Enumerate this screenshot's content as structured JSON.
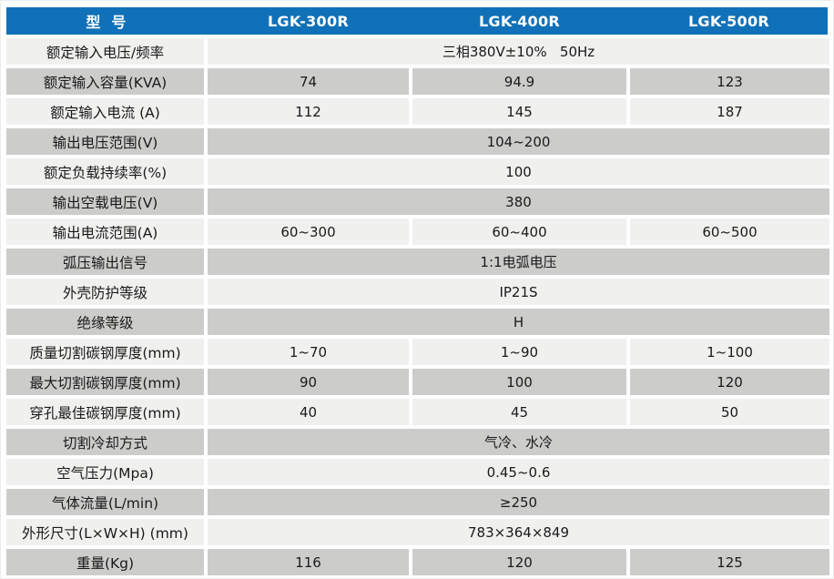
{
  "colors": {
    "header_bg": "#1171b8",
    "header_text": "#ffffff",
    "row_light": "#f0f0ef",
    "row_dark": "#cccccb",
    "text": "#1a1a1a",
    "page_bg": "#ffffff"
  },
  "table": {
    "header": {
      "model_label": "型  号",
      "columns": [
        "LGK-300R",
        "LGK-400R",
        "LGK-500R"
      ]
    },
    "rows": [
      {
        "label": "额定输入电压/频率",
        "merged": "三相380V±10%   50Hz"
      },
      {
        "label": "额定输入容量(KVA)",
        "values": [
          "74",
          "94.9",
          "123"
        ]
      },
      {
        "label": "额定输入电流 (A)",
        "values": [
          "112",
          "145",
          "187"
        ]
      },
      {
        "label": "输出电压范围(V)",
        "merged": "104~200"
      },
      {
        "label": "额定负载持续率(%)",
        "merged": "100"
      },
      {
        "label": "输出空载电压(V)",
        "merged": "380"
      },
      {
        "label": "输出电流范围(A)",
        "values": [
          "60~300",
          "60~400",
          "60~500"
        ]
      },
      {
        "label": "弧压输出信号",
        "merged": "1:1电弧电压"
      },
      {
        "label": "外壳防护等级",
        "merged": "IP21S"
      },
      {
        "label": "绝缘等级",
        "merged": "H"
      },
      {
        "label": "质量切割碳钢厚度(mm)",
        "values": [
          "1~70",
          "1~90",
          "1~100"
        ]
      },
      {
        "label": "最大切割碳钢厚度(mm)",
        "values": [
          "90",
          "100",
          "120"
        ]
      },
      {
        "label": "穿孔最佳碳钢厚度(mm)",
        "values": [
          "40",
          "45",
          "50"
        ]
      },
      {
        "label": "切割冷却方式",
        "merged": "气冷、水冷"
      },
      {
        "label": "空气压力(Mpa)",
        "merged": "0.45~0.6"
      },
      {
        "label": "气体流量(L/min)",
        "merged": "≥250"
      },
      {
        "label": "外形尺寸(L×W×H) (mm)",
        "merged": "783×364×849"
      },
      {
        "label": "重量(Kg)",
        "values": [
          "116",
          "120",
          "125"
        ]
      }
    ]
  }
}
